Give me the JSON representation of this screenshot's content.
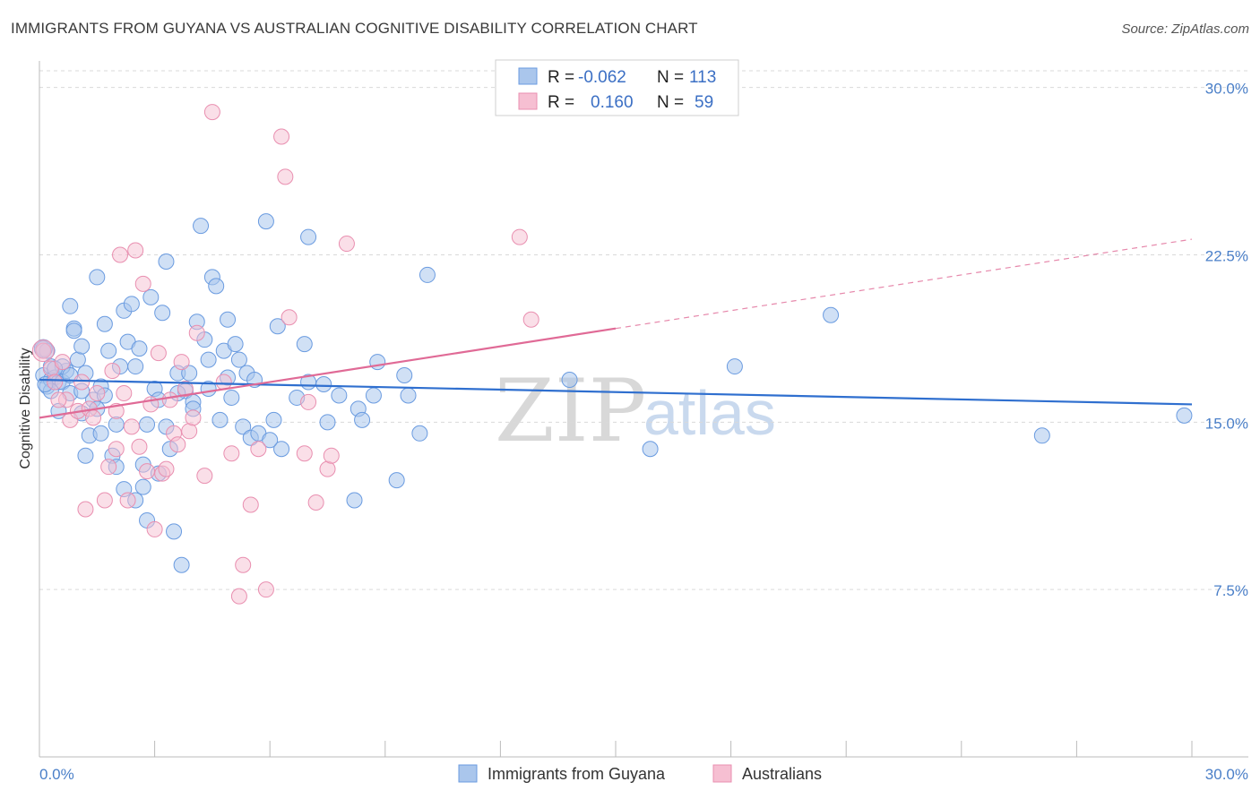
{
  "header": {
    "title": "IMMIGRANTS FROM GUYANA VS AUSTRALIAN COGNITIVE DISABILITY CORRELATION CHART",
    "source": "Source: ZipAtlas.com"
  },
  "watermark": {
    "zip": "ZIP",
    "atlas": "atlas"
  },
  "colors": {
    "blue_fill": "#aac6ec",
    "blue_stroke": "#6a9be0",
    "blue_line": "#2f6fcf",
    "pink_fill": "#f6bfd2",
    "pink_stroke": "#e98fb0",
    "pink_line": "#e06a96",
    "grid": "#d9d9d9",
    "axis_text": "#4a7fc8"
  },
  "legend": {
    "rows": [
      {
        "r_label": "R =",
        "r_value": "-0.062",
        "n_label": "N =",
        "n_value": "113"
      },
      {
        "r_label": "R =",
        "r_value": "0.160",
        "n_label": "N =",
        "n_value": "59"
      }
    ]
  },
  "bottom_legend": {
    "series1": "Immigrants from Guyana",
    "series2": "Australians"
  },
  "chart_data": {
    "type": "scatter",
    "title": "IMMIGRANTS FROM GUYANA VS AUSTRALIAN COGNITIVE DISABILITY CORRELATION CHART",
    "xlabel": "",
    "ylabel": "Cognitive Disability",
    "xlim": [
      0,
      30
    ],
    "ylim": [
      0,
      30.0
    ],
    "x_tick_labels": [
      "0.0%",
      "30.0%"
    ],
    "y_ticks": [
      7.5,
      15.0,
      22.5,
      30.0
    ],
    "y_tick_labels": [
      "7.5%",
      "15.0%",
      "22.5%",
      "30.0%"
    ],
    "grid": true,
    "series": [
      {
        "name": "Immigrants from Guyana",
        "R": -0.062,
        "N": 113,
        "trend": {
          "x0": 0,
          "y0": 16.9,
          "x1": 30,
          "y1": 15.8
        },
        "points": [
          [
            0.1,
            18.3
          ],
          [
            0.1,
            17.1
          ],
          [
            0.2,
            16.6
          ],
          [
            0.3,
            16.9
          ],
          [
            0.3,
            17.5
          ],
          [
            0.4,
            17.0
          ],
          [
            0.5,
            16.8
          ],
          [
            0.5,
            15.5
          ],
          [
            0.6,
            16.8
          ],
          [
            0.7,
            17.3
          ],
          [
            0.8,
            16.3
          ],
          [
            0.8,
            20.2
          ],
          [
            0.9,
            19.2
          ],
          [
            1.0,
            17.8
          ],
          [
            1.1,
            18.4
          ],
          [
            1.1,
            15.4
          ],
          [
            1.2,
            17.2
          ],
          [
            1.3,
            14.4
          ],
          [
            1.4,
            16.0
          ],
          [
            1.5,
            21.5
          ],
          [
            1.6,
            16.6
          ],
          [
            1.6,
            14.5
          ],
          [
            1.7,
            19.4
          ],
          [
            1.8,
            18.2
          ],
          [
            1.9,
            13.5
          ],
          [
            2.0,
            14.9
          ],
          [
            2.0,
            13.0
          ],
          [
            2.1,
            17.5
          ],
          [
            2.2,
            20.0
          ],
          [
            2.3,
            18.6
          ],
          [
            2.4,
            20.3
          ],
          [
            2.5,
            17.5
          ],
          [
            2.6,
            18.3
          ],
          [
            2.7,
            13.1
          ],
          [
            2.7,
            12.1
          ],
          [
            2.8,
            10.6
          ],
          [
            2.9,
            20.6
          ],
          [
            3.0,
            16.5
          ],
          [
            3.1,
            12.7
          ],
          [
            3.2,
            19.9
          ],
          [
            3.3,
            22.2
          ],
          [
            3.4,
            13.8
          ],
          [
            3.5,
            10.1
          ],
          [
            3.6,
            17.2
          ],
          [
            3.7,
            8.6
          ],
          [
            3.8,
            16.4
          ],
          [
            3.9,
            17.2
          ],
          [
            4.0,
            15.9
          ],
          [
            4.1,
            19.5
          ],
          [
            4.2,
            23.8
          ],
          [
            4.3,
            18.7
          ],
          [
            4.4,
            17.8
          ],
          [
            4.5,
            21.5
          ],
          [
            4.6,
            21.1
          ],
          [
            4.7,
            15.1
          ],
          [
            4.8,
            18.2
          ],
          [
            4.9,
            19.6
          ],
          [
            5.0,
            16.1
          ],
          [
            5.1,
            18.5
          ],
          [
            5.2,
            17.8
          ],
          [
            5.3,
            14.8
          ],
          [
            5.4,
            17.2
          ],
          [
            5.5,
            14.3
          ],
          [
            5.7,
            14.5
          ],
          [
            5.9,
            24.0
          ],
          [
            6.1,
            15.1
          ],
          [
            6.2,
            19.3
          ],
          [
            6.3,
            13.8
          ],
          [
            6.7,
            16.1
          ],
          [
            6.9,
            18.5
          ],
          [
            7.0,
            16.8
          ],
          [
            7.0,
            23.3
          ],
          [
            7.4,
            16.7
          ],
          [
            7.5,
            15.0
          ],
          [
            8.2,
            11.5
          ],
          [
            8.3,
            15.6
          ],
          [
            8.4,
            15.1
          ],
          [
            8.7,
            16.2
          ],
          [
            8.8,
            17.7
          ],
          [
            9.3,
            12.4
          ],
          [
            9.5,
            17.1
          ],
          [
            9.6,
            16.2
          ],
          [
            9.9,
            14.5
          ],
          [
            10.1,
            21.6
          ],
          [
            1.2,
            13.5
          ],
          [
            0.3,
            16.4
          ],
          [
            0.6,
            17.5
          ],
          [
            0.9,
            19.1
          ],
          [
            1.5,
            15.6
          ],
          [
            1.7,
            16.2
          ],
          [
            2.2,
            12.0
          ],
          [
            2.5,
            11.5
          ],
          [
            2.8,
            14.9
          ],
          [
            3.1,
            16.0
          ],
          [
            3.3,
            14.8
          ],
          [
            3.6,
            16.3
          ],
          [
            4.0,
            15.6
          ],
          [
            4.4,
            16.5
          ],
          [
            4.9,
            17.0
          ],
          [
            5.6,
            16.9
          ],
          [
            6.0,
            14.2
          ],
          [
            7.8,
            16.2
          ],
          [
            0.2,
            18.2
          ],
          [
            0.4,
            17.4
          ],
          [
            0.8,
            17.1
          ],
          [
            1.1,
            16.4
          ],
          [
            13.8,
            16.9
          ],
          [
            15.9,
            13.8
          ],
          [
            18.1,
            17.5
          ],
          [
            20.6,
            19.8
          ],
          [
            26.1,
            14.4
          ],
          [
            29.8,
            15.3
          ],
          [
            0.15,
            16.7
          ]
        ]
      },
      {
        "name": "Australians",
        "R": 0.16,
        "N": 59,
        "trend": {
          "x0": 0,
          "y0": 15.2,
          "x1": 15.0,
          "y1": 19.2,
          "dash_x1": 30,
          "dash_y1": 23.2
        },
        "points": [
          [
            0.1,
            18.2
          ],
          [
            0.3,
            17.4
          ],
          [
            0.4,
            16.8
          ],
          [
            0.6,
            17.7
          ],
          [
            0.7,
            16.0
          ],
          [
            0.8,
            15.1
          ],
          [
            1.0,
            15.5
          ],
          [
            1.2,
            11.1
          ],
          [
            1.3,
            15.6
          ],
          [
            1.4,
            15.2
          ],
          [
            1.5,
            16.3
          ],
          [
            1.7,
            11.5
          ],
          [
            1.8,
            13.0
          ],
          [
            1.9,
            17.3
          ],
          [
            2.0,
            15.5
          ],
          [
            2.1,
            22.5
          ],
          [
            2.2,
            16.3
          ],
          [
            2.3,
            11.5
          ],
          [
            2.4,
            14.8
          ],
          [
            2.5,
            22.7
          ],
          [
            2.6,
            13.9
          ],
          [
            2.7,
            21.2
          ],
          [
            2.8,
            12.8
          ],
          [
            2.9,
            15.8
          ],
          [
            3.0,
            10.2
          ],
          [
            3.1,
            18.1
          ],
          [
            3.2,
            12.7
          ],
          [
            3.3,
            12.9
          ],
          [
            3.4,
            16.0
          ],
          [
            3.5,
            14.5
          ],
          [
            3.6,
            14.0
          ],
          [
            3.7,
            17.7
          ],
          [
            3.8,
            16.5
          ],
          [
            3.9,
            14.6
          ],
          [
            4.0,
            15.2
          ],
          [
            4.1,
            19.0
          ],
          [
            4.3,
            12.6
          ],
          [
            4.5,
            28.9
          ],
          [
            4.8,
            16.8
          ],
          [
            5.0,
            13.6
          ],
          [
            5.2,
            7.2
          ],
          [
            5.3,
            8.6
          ],
          [
            5.5,
            11.3
          ],
          [
            5.7,
            13.8
          ],
          [
            5.9,
            7.5
          ],
          [
            6.3,
            27.8
          ],
          [
            6.4,
            26.0
          ],
          [
            6.5,
            19.7
          ],
          [
            6.9,
            13.6
          ],
          [
            7.0,
            15.9
          ],
          [
            7.2,
            11.4
          ],
          [
            7.5,
            12.9
          ],
          [
            7.6,
            13.5
          ],
          [
            8.0,
            23.0
          ],
          [
            12.5,
            23.3
          ],
          [
            12.8,
            19.6
          ],
          [
            0.5,
            16.0
          ],
          [
            1.1,
            16.8
          ],
          [
            2.0,
            13.8
          ]
        ]
      }
    ]
  }
}
